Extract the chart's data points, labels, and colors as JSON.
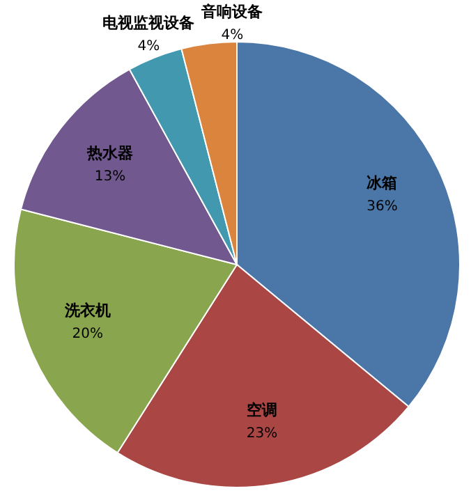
{
  "chart_data": {
    "type": "pie",
    "categories": [
      "冰箱",
      "空调",
      "洗衣机",
      "热水器",
      "电视监视设备",
      "音响设备"
    ],
    "values": [
      36,
      23,
      20,
      13,
      4,
      4
    ],
    "value_labels": [
      "36%",
      "23%",
      "20%",
      "13%",
      "4%",
      "4%"
    ],
    "colors": [
      "#4a76a8",
      "#aa4643",
      "#89a54e",
      "#71588f",
      "#4198af",
      "#db843d"
    ]
  }
}
